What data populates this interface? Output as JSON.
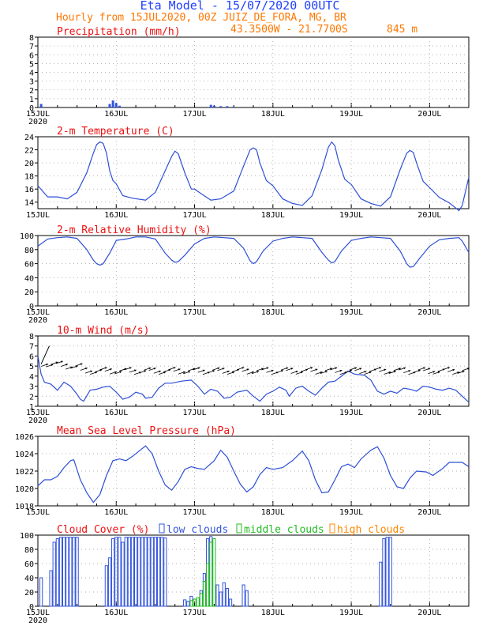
{
  "header": {
    "title": "Eta Model - 15/07/2020 00UTC",
    "subtitle": "Hourly from 15JUL2020, 00Z  JUIZ_DE_FORA, MG, BR",
    "location": "43.3500W - 21.7700S",
    "elevation": "845  m"
  },
  "colors": {
    "title": "#2040ff",
    "orange": "#ff7700",
    "red": "#ee1010",
    "line": "#2d4fd6",
    "low": "#3355dd",
    "middle": "#22bb22",
    "high": "#ff8800",
    "axis": "#000000",
    "grid": "#999999"
  },
  "time_axis": {
    "hours_total": 132,
    "tick_labels": [
      "15JUL",
      "16JUL",
      "17JUL",
      "18JUL",
      "19JUL",
      "20JUL"
    ],
    "tick_hours": [
      0,
      24,
      48,
      72,
      96,
      120
    ],
    "year_label": "2020"
  },
  "chart_data": [
    {
      "type": "bar",
      "title": "Precipitation (mm/h)",
      "ylim": [
        0,
        8
      ],
      "yticks": [
        0,
        1,
        2,
        3,
        4,
        5,
        6,
        7,
        8
      ],
      "bars": [
        {
          "hour": 1,
          "value": 0.4
        },
        {
          "hour": 22,
          "value": 0.4
        },
        {
          "hour": 23,
          "value": 0.8
        },
        {
          "hour": 24,
          "value": 0.5
        },
        {
          "hour": 25,
          "value": 0.2
        },
        {
          "hour": 53,
          "value": 0.3
        },
        {
          "hour": 54,
          "value": 0.2
        },
        {
          "hour": 56,
          "value": 0.15
        },
        {
          "hour": 58,
          "value": 0.15
        },
        {
          "hour": 60,
          "value": 0.1
        }
      ]
    },
    {
      "type": "line",
      "title": "2-m Temperature (C)",
      "ylim": [
        13,
        24
      ],
      "yticks": [
        14,
        16,
        18,
        20,
        22,
        24
      ],
      "points": [
        [
          0,
          16.5
        ],
        [
          3,
          14.8
        ],
        [
          6,
          14.8
        ],
        [
          9,
          14.5
        ],
        [
          12,
          15.5
        ],
        [
          15,
          18.5
        ],
        [
          17,
          21.5
        ],
        [
          18,
          22.8
        ],
        [
          19,
          23.2
        ],
        [
          20,
          23.0
        ],
        [
          21,
          21.5
        ],
        [
          22,
          18.8
        ],
        [
          23,
          17.3
        ],
        [
          24,
          16.8
        ],
        [
          26,
          15.0
        ],
        [
          29,
          14.6
        ],
        [
          33,
          14.3
        ],
        [
          36,
          15.5
        ],
        [
          39,
          18.8
        ],
        [
          41,
          21.0
        ],
        [
          42,
          21.8
        ],
        [
          43,
          21.4
        ],
        [
          45,
          18.5
        ],
        [
          47,
          16.0
        ],
        [
          48,
          16.0
        ],
        [
          50,
          15.3
        ],
        [
          53,
          14.3
        ],
        [
          56,
          14.5
        ],
        [
          60,
          15.7
        ],
        [
          63,
          19.5
        ],
        [
          65,
          22.0
        ],
        [
          66,
          22.3
        ],
        [
          67,
          22.0
        ],
        [
          68,
          20.0
        ],
        [
          70,
          17.3
        ],
        [
          72,
          16.5
        ],
        [
          75,
          14.5
        ],
        [
          78,
          13.8
        ],
        [
          81,
          13.5
        ],
        [
          84,
          15.0
        ],
        [
          87,
          19.0
        ],
        [
          89,
          22.4
        ],
        [
          90,
          23.2
        ],
        [
          91,
          22.6
        ],
        [
          92,
          20.5
        ],
        [
          94,
          17.5
        ],
        [
          96,
          16.7
        ],
        [
          99,
          14.5
        ],
        [
          102,
          13.8
        ],
        [
          105,
          13.4
        ],
        [
          108,
          14.8
        ],
        [
          111,
          19.0
        ],
        [
          113,
          21.5
        ],
        [
          114,
          21.9
        ],
        [
          115,
          21.6
        ],
        [
          116,
          20.0
        ],
        [
          118,
          17.2
        ],
        [
          120,
          16.2
        ],
        [
          123,
          14.7
        ],
        [
          126,
          13.9
        ],
        [
          129,
          12.7
        ],
        [
          130,
          13.5
        ],
        [
          132,
          17.8
        ]
      ]
    },
    {
      "type": "line",
      "title": "2-m Relative Humidity (%)",
      "ylim": [
        0,
        100
      ],
      "yticks": [
        0,
        20,
        40,
        60,
        80,
        100
      ],
      "points": [
        [
          0,
          85
        ],
        [
          3,
          95
        ],
        [
          6,
          97
        ],
        [
          9,
          98
        ],
        [
          12,
          96
        ],
        [
          15,
          80
        ],
        [
          17,
          65
        ],
        [
          18,
          60
        ],
        [
          19,
          58
        ],
        [
          20,
          60
        ],
        [
          22,
          75
        ],
        [
          24,
          93
        ],
        [
          27,
          95
        ],
        [
          30,
          98
        ],
        [
          33,
          98
        ],
        [
          36,
          95
        ],
        [
          39,
          75
        ],
        [
          41,
          65
        ],
        [
          42,
          62
        ],
        [
          43,
          63
        ],
        [
          45,
          72
        ],
        [
          48,
          88
        ],
        [
          51,
          96
        ],
        [
          54,
          98
        ],
        [
          57,
          97
        ],
        [
          60,
          96
        ],
        [
          63,
          82
        ],
        [
          65,
          64
        ],
        [
          66,
          60
        ],
        [
          67,
          63
        ],
        [
          69,
          78
        ],
        [
          72,
          92
        ],
        [
          75,
          96
        ],
        [
          78,
          98
        ],
        [
          81,
          97
        ],
        [
          84,
          96
        ],
        [
          87,
          76
        ],
        [
          89,
          65
        ],
        [
          90,
          61
        ],
        [
          91,
          63
        ],
        [
          93,
          78
        ],
        [
          96,
          93
        ],
        [
          99,
          96
        ],
        [
          102,
          98
        ],
        [
          105,
          97
        ],
        [
          108,
          96
        ],
        [
          111,
          78
        ],
        [
          113,
          60
        ],
        [
          114,
          55
        ],
        [
          115,
          56
        ],
        [
          117,
          68
        ],
        [
          120,
          85
        ],
        [
          123,
          94
        ],
        [
          126,
          96
        ],
        [
          129,
          97
        ],
        [
          130,
          92
        ],
        [
          132,
          76
        ]
      ]
    },
    {
      "type": "line",
      "title": "10-m Wind (m/s)",
      "ylim": [
        1,
        8
      ],
      "yticks": [
        1,
        2,
        3,
        4,
        5,
        6,
        7,
        8
      ],
      "points": [
        [
          0,
          6.0
        ],
        [
          1,
          4.2
        ],
        [
          2,
          3.4
        ],
        [
          4,
          3.2
        ],
        [
          6,
          2.6
        ],
        [
          8,
          3.4
        ],
        [
          10,
          3.0
        ],
        [
          12,
          2.2
        ],
        [
          13,
          1.7
        ],
        [
          14,
          1.5
        ],
        [
          16,
          2.6
        ],
        [
          18,
          2.7
        ],
        [
          20,
          2.9
        ],
        [
          22,
          3.0
        ],
        [
          24,
          2.4
        ],
        [
          26,
          1.7
        ],
        [
          28,
          1.9
        ],
        [
          30,
          2.4
        ],
        [
          32,
          2.2
        ],
        [
          33,
          1.8
        ],
        [
          35,
          1.9
        ],
        [
          37,
          2.8
        ],
        [
          39,
          3.3
        ],
        [
          41,
          3.3
        ],
        [
          44,
          3.5
        ],
        [
          47,
          3.6
        ],
        [
          49,
          3.0
        ],
        [
          51,
          2.2
        ],
        [
          53,
          2.7
        ],
        [
          55,
          2.5
        ],
        [
          57,
          1.8
        ],
        [
          59,
          1.9
        ],
        [
          61,
          2.4
        ],
        [
          64,
          2.6
        ],
        [
          66,
          2.0
        ],
        [
          68,
          1.5
        ],
        [
          70,
          2.2
        ],
        [
          72,
          2.5
        ],
        [
          74,
          2.9
        ],
        [
          76,
          2.6
        ],
        [
          77,
          2.0
        ],
        [
          79,
          2.8
        ],
        [
          81,
          3.0
        ],
        [
          83,
          2.5
        ],
        [
          85,
          2.1
        ],
        [
          87,
          2.8
        ],
        [
          89,
          3.4
        ],
        [
          91,
          3.5
        ],
        [
          93,
          4.0
        ],
        [
          95,
          4.5
        ],
        [
          97,
          4.2
        ],
        [
          100,
          4.1
        ],
        [
          102,
          3.6
        ],
        [
          104,
          2.5
        ],
        [
          106,
          2.2
        ],
        [
          108,
          2.5
        ],
        [
          110,
          2.3
        ],
        [
          112,
          2.8
        ],
        [
          114,
          2.7
        ],
        [
          116,
          2.5
        ],
        [
          118,
          3.0
        ],
        [
          120,
          2.9
        ],
        [
          122,
          2.7
        ],
        [
          124,
          2.6
        ],
        [
          126,
          2.8
        ],
        [
          128,
          2.6
        ],
        [
          130,
          2.0
        ],
        [
          132,
          1.4
        ]
      ],
      "barb_note": "wind arrows drawn along ~4-5 m/s band"
    },
    {
      "type": "line",
      "title": "Mean Sea Level Pressure (hPa)",
      "ylim": [
        1018,
        1026
      ],
      "yticks": [
        1018,
        1020,
        1022,
        1024,
        1026
      ],
      "points": [
        [
          0,
          1020.3
        ],
        [
          2,
          1021.0
        ],
        [
          4,
          1021.0
        ],
        [
          6,
          1021.4
        ],
        [
          8,
          1022.4
        ],
        [
          10,
          1023.2
        ],
        [
          11,
          1023.3
        ],
        [
          13,
          1021.0
        ],
        [
          15,
          1019.5
        ],
        [
          17,
          1018.4
        ],
        [
          19,
          1019.3
        ],
        [
          21,
          1021.5
        ],
        [
          23,
          1023.2
        ],
        [
          25,
          1023.4
        ],
        [
          27,
          1023.2
        ],
        [
          29,
          1023.7
        ],
        [
          31,
          1024.3
        ],
        [
          33,
          1024.9
        ],
        [
          35,
          1024.0
        ],
        [
          37,
          1022.0
        ],
        [
          39,
          1020.4
        ],
        [
          41,
          1019.8
        ],
        [
          43,
          1020.8
        ],
        [
          45,
          1022.2
        ],
        [
          47,
          1022.5
        ],
        [
          49,
          1022.3
        ],
        [
          51,
          1022.2
        ],
        [
          54,
          1023.2
        ],
        [
          56,
          1024.4
        ],
        [
          58,
          1023.6
        ],
        [
          60,
          1022.0
        ],
        [
          62,
          1020.5
        ],
        [
          64,
          1019.6
        ],
        [
          66,
          1020.2
        ],
        [
          68,
          1021.6
        ],
        [
          70,
          1022.4
        ],
        [
          72,
          1022.2
        ],
        [
          75,
          1022.4
        ],
        [
          78,
          1023.2
        ],
        [
          81,
          1024.3
        ],
        [
          83,
          1023.2
        ],
        [
          85,
          1021.0
        ],
        [
          87,
          1019.5
        ],
        [
          89,
          1019.6
        ],
        [
          91,
          1021.0
        ],
        [
          93,
          1022.5
        ],
        [
          95,
          1022.8
        ],
        [
          97,
          1022.4
        ],
        [
          99,
          1023.4
        ],
        [
          102,
          1024.4
        ],
        [
          104,
          1024.8
        ],
        [
          106,
          1023.5
        ],
        [
          108,
          1021.5
        ],
        [
          110,
          1020.2
        ],
        [
          112,
          1020.0
        ],
        [
          114,
          1021.2
        ],
        [
          116,
          1022.0
        ],
        [
          119,
          1021.9
        ],
        [
          121,
          1021.5
        ],
        [
          124,
          1022.3
        ],
        [
          126,
          1023.0
        ],
        [
          128,
          1023.0
        ],
        [
          130,
          1023.0
        ],
        [
          132,
          1022.5
        ]
      ]
    },
    {
      "type": "bar",
      "title": "Cloud Cover (%)",
      "ylim": [
        0,
        100
      ],
      "yticks": [
        0,
        20,
        40,
        60,
        80,
        100
      ],
      "legend": [
        "low clouds",
        "middle clouds",
        "high clouds"
      ],
      "series": [
        {
          "name": "low clouds",
          "bars": [
            [
              1,
              40
            ],
            [
              4,
              50
            ],
            [
              5,
              90
            ],
            [
              6,
              95
            ],
            [
              7,
              97
            ],
            [
              8,
              97
            ],
            [
              9,
              97
            ],
            [
              10,
              97
            ],
            [
              11,
              97
            ],
            [
              12,
              97
            ],
            [
              21,
              57
            ],
            [
              22,
              68
            ],
            [
              23,
              95
            ],
            [
              24,
              97
            ],
            [
              25,
              97
            ],
            [
              26,
              90
            ],
            [
              27,
              97
            ],
            [
              28,
              97
            ],
            [
              29,
              97
            ],
            [
              30,
              97
            ],
            [
              31,
              97
            ],
            [
              32,
              97
            ],
            [
              33,
              97
            ],
            [
              34,
              97
            ],
            [
              35,
              97
            ],
            [
              36,
              97
            ],
            [
              37,
              97
            ],
            [
              38,
              97
            ],
            [
              39,
              96
            ],
            [
              45,
              9
            ],
            [
              46,
              7
            ],
            [
              47,
              14
            ],
            [
              50,
              22
            ],
            [
              51,
              46
            ],
            [
              52,
              95
            ],
            [
              53,
              98
            ],
            [
              55,
              30
            ],
            [
              56,
              20
            ],
            [
              57,
              33
            ],
            [
              58,
              25
            ],
            [
              59,
              10
            ],
            [
              63,
              30
            ],
            [
              64,
              22
            ],
            [
              105,
              62
            ],
            [
              106,
              95
            ],
            [
              107,
              97
            ],
            [
              108,
              97
            ]
          ]
        },
        {
          "name": "middle clouds",
          "bars": [
            [
              47,
              8
            ],
            [
              48,
              10
            ],
            [
              49,
              12
            ],
            [
              50,
              18
            ],
            [
              51,
              35
            ],
            [
              52,
              60
            ],
            [
              53,
              90
            ],
            [
              54,
              95
            ]
          ]
        },
        {
          "name": "high clouds",
          "bars": []
        }
      ]
    }
  ]
}
